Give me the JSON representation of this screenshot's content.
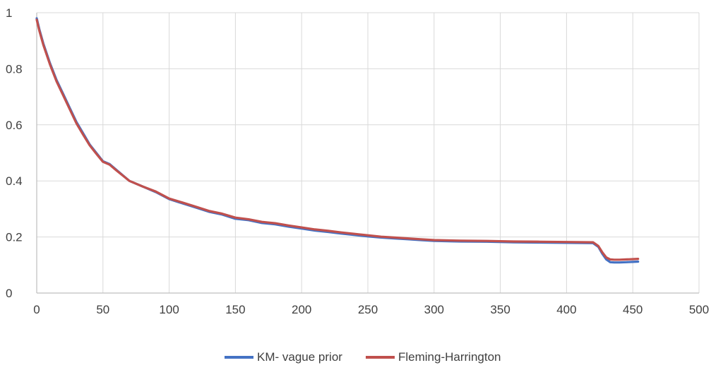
{
  "chart_data": {
    "type": "line",
    "title": "",
    "xlabel": "",
    "ylabel": "",
    "xlim": [
      0,
      500
    ],
    "ylim": [
      0,
      1
    ],
    "x_ticks": [
      0,
      50,
      100,
      150,
      200,
      250,
      300,
      350,
      400,
      450,
      500
    ],
    "y_ticks": [
      0,
      0.2,
      0.4,
      0.6,
      0.8,
      1
    ],
    "x_tick_labels": [
      "0",
      "50",
      "100",
      "150",
      "200",
      "250",
      "300",
      "350",
      "400",
      "450",
      "500"
    ],
    "y_tick_labels": [
      "0",
      "0.2",
      "0.4",
      "0.6",
      "0.8",
      "1"
    ],
    "grid": "vertical and horizontal",
    "legend_position": "bottom",
    "series": [
      {
        "name": "KM- vague prior",
        "color": "#4472C4",
        "x": [
          0,
          2,
          5,
          10,
          15,
          20,
          25,
          30,
          35,
          40,
          45,
          50,
          55,
          60,
          70,
          80,
          90,
          100,
          110,
          120,
          130,
          140,
          150,
          160,
          170,
          180,
          190,
          200,
          210,
          220,
          230,
          240,
          250,
          260,
          270,
          280,
          290,
          300,
          320,
          340,
          360,
          380,
          400,
          420,
          424,
          427,
          430,
          433,
          436,
          440,
          445,
          450,
          454
        ],
        "y": [
          0.98,
          0.94,
          0.89,
          0.82,
          0.76,
          0.71,
          0.66,
          0.61,
          0.57,
          0.53,
          0.5,
          0.47,
          0.46,
          0.44,
          0.4,
          0.38,
          0.36,
          0.335,
          0.32,
          0.305,
          0.29,
          0.28,
          0.265,
          0.26,
          0.25,
          0.245,
          0.237,
          0.23,
          0.223,
          0.218,
          0.212,
          0.207,
          0.202,
          0.198,
          0.195,
          0.192,
          0.189,
          0.186,
          0.184,
          0.183,
          0.181,
          0.18,
          0.179,
          0.178,
          0.165,
          0.14,
          0.12,
          0.11,
          0.109,
          0.109,
          0.11,
          0.111,
          0.112
        ]
      },
      {
        "name": "Fleming-Harrington",
        "color": "#C0504D",
        "x": [
          0,
          2,
          5,
          10,
          15,
          20,
          25,
          30,
          35,
          40,
          45,
          50,
          55,
          60,
          70,
          80,
          90,
          100,
          110,
          120,
          130,
          140,
          150,
          160,
          170,
          180,
          190,
          200,
          210,
          220,
          230,
          240,
          250,
          260,
          270,
          280,
          290,
          300,
          320,
          340,
          360,
          380,
          400,
          420,
          424,
          427,
          430,
          433,
          436,
          440,
          445,
          450,
          454
        ],
        "y": [
          0.975,
          0.935,
          0.885,
          0.815,
          0.755,
          0.705,
          0.655,
          0.605,
          0.565,
          0.527,
          0.497,
          0.468,
          0.458,
          0.438,
          0.4,
          0.38,
          0.362,
          0.337,
          0.323,
          0.308,
          0.293,
          0.283,
          0.269,
          0.263,
          0.254,
          0.249,
          0.241,
          0.234,
          0.227,
          0.222,
          0.216,
          0.211,
          0.206,
          0.201,
          0.198,
          0.195,
          0.192,
          0.189,
          0.187,
          0.186,
          0.184,
          0.183,
          0.182,
          0.181,
          0.168,
          0.145,
          0.127,
          0.12,
          0.119,
          0.119,
          0.12,
          0.121,
          0.122
        ]
      }
    ]
  }
}
